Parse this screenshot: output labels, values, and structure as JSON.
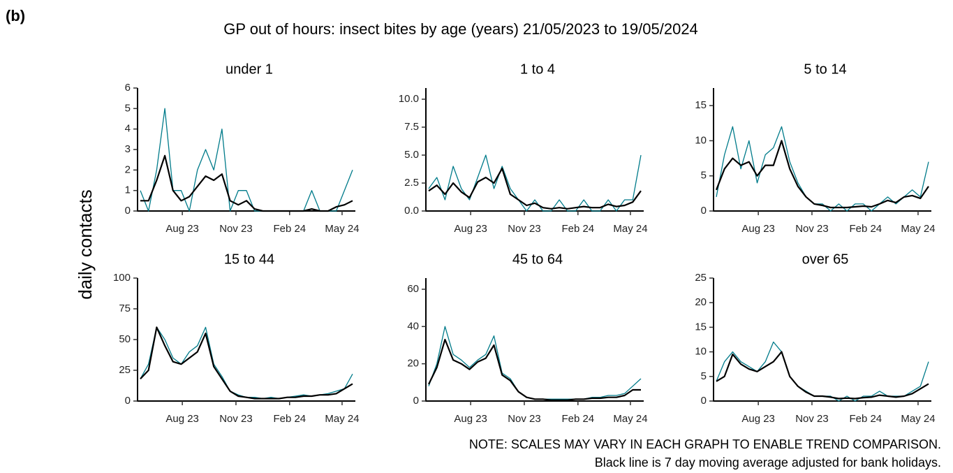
{
  "panel_label": "(b)",
  "title": "GP out of hours: insect bites by age (years) 21/05/2023 to 19/05/2024",
  "ylabel": "daily contacts",
  "notes": [
    "NOTE: SCALES MAY VARY IN EACH GRAPH TO ENABLE TREND COMPARISON.",
    "Black line is 7 day moving average adjusted for bank holidays."
  ],
  "chart_data": [
    {
      "type": "line",
      "title": "under 1",
      "x": [
        "2023-05-21",
        "2023-06-04",
        "2023-06-18",
        "2023-07-02",
        "2023-07-16",
        "2023-07-30",
        "2023-08-13",
        "2023-08-27",
        "2023-09-10",
        "2023-09-24",
        "2023-10-08",
        "2023-10-22",
        "2023-11-05",
        "2023-11-19",
        "2023-12-03",
        "2023-12-17",
        "2023-12-31",
        "2024-01-14",
        "2024-01-28",
        "2024-02-11",
        "2024-02-25",
        "2024-03-10",
        "2024-03-24",
        "2024-04-07",
        "2024-04-21",
        "2024-05-05",
        "2024-05-19"
      ],
      "xlim": [
        "2023-05-21",
        "2024-05-19"
      ],
      "xticks": [
        {
          "value": "2023-08-01",
          "label": "Aug 23"
        },
        {
          "value": "2023-11-01",
          "label": "Nov 23"
        },
        {
          "value": "2024-02-01",
          "label": "Feb 24"
        },
        {
          "value": "2024-05-01",
          "label": "May 24"
        }
      ],
      "ylim": [
        0,
        6
      ],
      "yticks": [
        0,
        1,
        2,
        3,
        4,
        5,
        6
      ],
      "series": [
        {
          "color": "#007b8a",
          "values": [
            1,
            0,
            2,
            5,
            1,
            1,
            0,
            2,
            3,
            2,
            4,
            0,
            1,
            1,
            0,
            0,
            0,
            0,
            0,
            0,
            0,
            1,
            0,
            0,
            0,
            1,
            2
          ]
        },
        {
          "color": "#000000",
          "values": [
            0.5,
            0.5,
            1.5,
            2.7,
            1,
            0.5,
            0.7,
            1.2,
            1.7,
            1.5,
            1.8,
            0.5,
            0.3,
            0.5,
            0.1,
            0,
            0,
            0,
            0,
            0,
            0,
            0.1,
            0,
            0,
            0.2,
            0.3,
            0.5
          ]
        }
      ]
    },
    {
      "type": "line",
      "title": "1 to 4",
      "x": [
        "2023-05-21",
        "2023-06-04",
        "2023-06-18",
        "2023-07-02",
        "2023-07-16",
        "2023-07-30",
        "2023-08-13",
        "2023-08-27",
        "2023-09-10",
        "2023-09-24",
        "2023-10-08",
        "2023-10-22",
        "2023-11-05",
        "2023-11-19",
        "2023-12-03",
        "2023-12-17",
        "2023-12-31",
        "2024-01-14",
        "2024-01-28",
        "2024-02-11",
        "2024-02-25",
        "2024-03-10",
        "2024-03-24",
        "2024-04-07",
        "2024-04-21",
        "2024-05-05",
        "2024-05-19"
      ],
      "xlim": [
        "2023-05-21",
        "2024-05-19"
      ],
      "xticks": [
        {
          "value": "2023-08-01",
          "label": "Aug 23"
        },
        {
          "value": "2023-11-01",
          "label": "Nov 23"
        },
        {
          "value": "2024-02-01",
          "label": "Feb 24"
        },
        {
          "value": "2024-05-01",
          "label": "May 24"
        }
      ],
      "ylim": [
        0,
        11
      ],
      "yticks": [
        {
          "value": 0,
          "label": "0.0"
        },
        2.5,
        {
          "value": 5,
          "label": "5.0"
        },
        7.5,
        {
          "value": 10,
          "label": "10.0"
        }
      ],
      "series": [
        {
          "color": "#007b8a",
          "values": [
            2,
            3,
            1,
            4,
            2,
            1,
            3,
            5,
            2,
            4,
            2,
            1,
            0,
            1,
            0,
            0,
            1,
            0,
            0,
            1,
            0,
            0,
            1,
            0,
            1,
            1,
            5
          ]
        },
        {
          "color": "#000000",
          "values": [
            1.8,
            2.3,
            1.5,
            2.5,
            1.7,
            1.2,
            2.6,
            3,
            2.5,
            3.8,
            1.5,
            1,
            0.5,
            0.7,
            0.3,
            0.2,
            0.3,
            0.2,
            0.3,
            0.4,
            0.3,
            0.3,
            0.6,
            0.4,
            0.5,
            0.8,
            1.8
          ]
        }
      ]
    },
    {
      "type": "line",
      "title": "5 to 14",
      "x": [
        "2023-05-21",
        "2023-06-04",
        "2023-06-18",
        "2023-07-02",
        "2023-07-16",
        "2023-07-30",
        "2023-08-13",
        "2023-08-27",
        "2023-09-10",
        "2023-09-24",
        "2023-10-08",
        "2023-10-22",
        "2023-11-05",
        "2023-11-19",
        "2023-12-03",
        "2023-12-17",
        "2023-12-31",
        "2024-01-14",
        "2024-01-28",
        "2024-02-11",
        "2024-02-25",
        "2024-03-10",
        "2024-03-24",
        "2024-04-07",
        "2024-04-21",
        "2024-05-05",
        "2024-05-19"
      ],
      "xlim": [
        "2023-05-21",
        "2024-05-19"
      ],
      "xticks": [
        {
          "value": "2023-08-01",
          "label": "Aug 23"
        },
        {
          "value": "2023-11-01",
          "label": "Nov 23"
        },
        {
          "value": "2024-02-01",
          "label": "Feb 24"
        },
        {
          "value": "2024-05-01",
          "label": "May 24"
        }
      ],
      "ylim": [
        0,
        17.5
      ],
      "yticks": [
        0,
        5,
        10,
        15
      ],
      "series": [
        {
          "color": "#007b8a",
          "values": [
            2,
            8,
            12,
            6,
            10,
            4,
            8,
            9,
            12,
            7,
            4,
            2,
            1,
            1,
            0,
            1,
            0,
            1,
            1,
            0,
            1,
            2,
            1,
            2,
            3,
            2,
            7
          ]
        },
        {
          "color": "#000000",
          "values": [
            3,
            6,
            7.5,
            6.5,
            7,
            5,
            6.5,
            6.5,
            10,
            6,
            3.5,
            2,
            1,
            0.8,
            0.5,
            0.5,
            0.5,
            0.6,
            0.7,
            0.6,
            1,
            1.5,
            1.2,
            2,
            2.2,
            1.8,
            3.5
          ]
        }
      ]
    },
    {
      "type": "line",
      "title": "15 to 44",
      "x": [
        "2023-05-21",
        "2023-06-04",
        "2023-06-18",
        "2023-07-02",
        "2023-07-16",
        "2023-07-30",
        "2023-08-13",
        "2023-08-27",
        "2023-09-10",
        "2023-09-24",
        "2023-10-08",
        "2023-10-22",
        "2023-11-05",
        "2023-11-19",
        "2023-12-03",
        "2023-12-17",
        "2023-12-31",
        "2024-01-14",
        "2024-01-28",
        "2024-02-11",
        "2024-02-25",
        "2024-03-10",
        "2024-03-24",
        "2024-04-07",
        "2024-04-21",
        "2024-05-05",
        "2024-05-19"
      ],
      "xlim": [
        "2023-05-21",
        "2024-05-19"
      ],
      "xticks": [
        {
          "value": "2023-08-01",
          "label": "Aug 23"
        },
        {
          "value": "2023-11-01",
          "label": "Nov 23"
        },
        {
          "value": "2024-02-01",
          "label": "Feb 24"
        },
        {
          "value": "2024-05-01",
          "label": "May 24"
        }
      ],
      "ylim": [
        0,
        100
      ],
      "yticks": [
        0,
        25,
        50,
        75,
        100
      ],
      "series": [
        {
          "color": "#007b8a",
          "values": [
            18,
            30,
            60,
            50,
            35,
            30,
            40,
            45,
            60,
            30,
            20,
            8,
            5,
            3,
            3,
            2,
            3,
            2,
            3,
            4,
            5,
            4,
            5,
            6,
            8,
            10,
            22
          ]
        },
        {
          "color": "#000000",
          "values": [
            18,
            25,
            60,
            45,
            32,
            30,
            35,
            40,
            55,
            28,
            18,
            8,
            4,
            3,
            2,
            2,
            2,
            2,
            3,
            3,
            4,
            4,
            5,
            5,
            6,
            10,
            14
          ]
        }
      ]
    },
    {
      "type": "line",
      "title": "45 to 64",
      "x": [
        "2023-05-21",
        "2023-06-04",
        "2023-06-18",
        "2023-07-02",
        "2023-07-16",
        "2023-07-30",
        "2023-08-13",
        "2023-08-27",
        "2023-09-10",
        "2023-09-24",
        "2023-10-08",
        "2023-10-22",
        "2023-11-05",
        "2023-11-19",
        "2023-12-03",
        "2023-12-17",
        "2023-12-31",
        "2024-01-14",
        "2024-01-28",
        "2024-02-11",
        "2024-02-25",
        "2024-03-10",
        "2024-03-24",
        "2024-04-07",
        "2024-04-21",
        "2024-05-05",
        "2024-05-19"
      ],
      "xlim": [
        "2023-05-21",
        "2024-05-19"
      ],
      "xticks": [
        {
          "value": "2023-08-01",
          "label": "Aug 23"
        },
        {
          "value": "2023-11-01",
          "label": "Nov 23"
        },
        {
          "value": "2024-02-01",
          "label": "Feb 24"
        },
        {
          "value": "2024-05-01",
          "label": "May 24"
        }
      ],
      "ylim": [
        0,
        66
      ],
      "yticks": [
        0,
        20,
        40,
        60
      ],
      "series": [
        {
          "color": "#007b8a",
          "values": [
            8,
            20,
            40,
            25,
            22,
            18,
            22,
            25,
            35,
            15,
            12,
            5,
            2,
            1,
            1,
            1,
            1,
            1,
            1,
            1,
            2,
            2,
            3,
            3,
            4,
            8,
            12
          ]
        },
        {
          "color": "#000000",
          "values": [
            9,
            18,
            33,
            22,
            20,
            17,
            21,
            23,
            30,
            14,
            11,
            5,
            2,
            1,
            1,
            0.5,
            0.5,
            0.5,
            1,
            1,
            1.5,
            1.5,
            2,
            2,
            3,
            6,
            6
          ]
        }
      ]
    },
    {
      "type": "line",
      "title": "over 65",
      "x": [
        "2023-05-21",
        "2023-06-04",
        "2023-06-18",
        "2023-07-02",
        "2023-07-16",
        "2023-07-30",
        "2023-08-13",
        "2023-08-27",
        "2023-09-10",
        "2023-09-24",
        "2023-10-08",
        "2023-10-22",
        "2023-11-05",
        "2023-11-19",
        "2023-12-03",
        "2023-12-17",
        "2023-12-31",
        "2024-01-14",
        "2024-01-28",
        "2024-02-11",
        "2024-02-25",
        "2024-03-10",
        "2024-03-24",
        "2024-04-07",
        "2024-04-21",
        "2024-05-05",
        "2024-05-19"
      ],
      "xlim": [
        "2023-05-21",
        "2024-05-19"
      ],
      "xticks": [
        {
          "value": "2023-08-01",
          "label": "Aug 23"
        },
        {
          "value": "2023-11-01",
          "label": "Nov 23"
        },
        {
          "value": "2024-02-01",
          "label": "Feb 24"
        },
        {
          "value": "2024-05-01",
          "label": "May 24"
        }
      ],
      "ylim": [
        0,
        25
      ],
      "yticks": [
        0,
        5,
        10,
        15,
        20,
        25
      ],
      "series": [
        {
          "color": "#007b8a",
          "values": [
            4,
            8,
            10,
            8,
            7,
            6,
            8,
            12,
            10,
            5,
            3,
            2,
            1,
            1,
            1,
            0,
            1,
            0,
            1,
            1,
            2,
            1,
            1,
            1,
            2,
            3,
            8
          ]
        },
        {
          "color": "#000000",
          "values": [
            4,
            5,
            9.5,
            7.5,
            6.5,
            6,
            7,
            8,
            10,
            5,
            3,
            1.8,
            1,
            1,
            0.8,
            0.5,
            0.6,
            0.5,
            0.7,
            0.8,
            1.2,
            1,
            0.8,
            1,
            1.5,
            2.5,
            3.5
          ]
        }
      ]
    }
  ]
}
